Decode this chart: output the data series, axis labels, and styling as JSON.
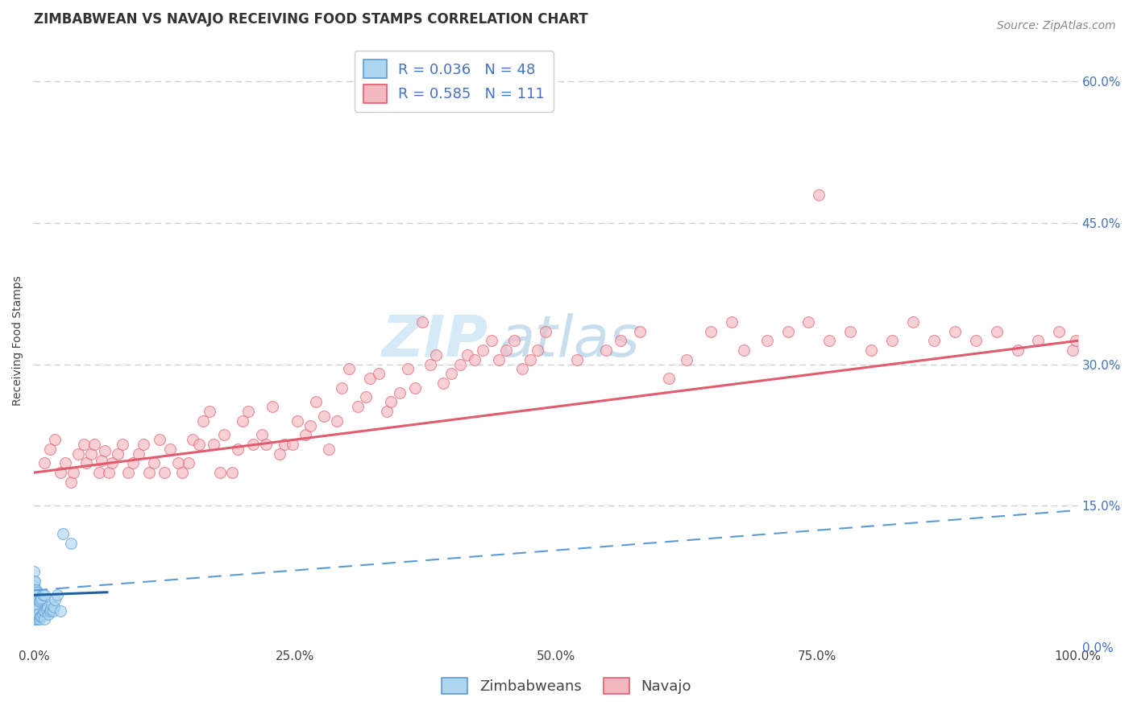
{
  "title": "ZIMBABWEAN VS NAVAJO RECEIVING FOOD STAMPS CORRELATION CHART",
  "source_text": "Source: ZipAtlas.com",
  "ylabel": "Receiving Food Stamps",
  "watermark_zip": "ZIP",
  "watermark_atlas": "atlas",
  "xlim": [
    0,
    1.0
  ],
  "ylim": [
    0,
    0.65
  ],
  "x_ticks": [
    0.0,
    0.25,
    0.5,
    0.75,
    1.0
  ],
  "x_tick_labels": [
    "0.0%",
    "25.0%",
    "50.0%",
    "75.0%",
    "100.0%"
  ],
  "y_ticks": [
    0.0,
    0.15,
    0.3,
    0.45,
    0.6
  ],
  "y_tick_labels": [
    "0.0%",
    "15.0%",
    "30.0%",
    "45.0%",
    "60.0%"
  ],
  "background_color": "#ffffff",
  "grid_color": "#cccccc",
  "zimbabwean_x": [
    0.0,
    0.0,
    0.0,
    0.0,
    0.0,
    0.0,
    0.0,
    0.0,
    0.0,
    0.0,
    0.001,
    0.001,
    0.001,
    0.001,
    0.001,
    0.002,
    0.002,
    0.002,
    0.003,
    0.003,
    0.003,
    0.004,
    0.004,
    0.005,
    0.005,
    0.006,
    0.006,
    0.007,
    0.007,
    0.008,
    0.008,
    0.009,
    0.01,
    0.01,
    0.011,
    0.012,
    0.013,
    0.014,
    0.015,
    0.016,
    0.017,
    0.018,
    0.019,
    0.02,
    0.022,
    0.025,
    0.028,
    0.035
  ],
  "zimbabwean_y": [
    0.03,
    0.04,
    0.05,
    0.06,
    0.07,
    0.08,
    0.035,
    0.045,
    0.055,
    0.065,
    0.03,
    0.04,
    0.05,
    0.06,
    0.07,
    0.03,
    0.045,
    0.06,
    0.03,
    0.042,
    0.058,
    0.035,
    0.05,
    0.03,
    0.048,
    0.032,
    0.05,
    0.033,
    0.052,
    0.035,
    0.055,
    0.038,
    0.03,
    0.055,
    0.038,
    0.04,
    0.042,
    0.035,
    0.038,
    0.04,
    0.045,
    0.038,
    0.042,
    0.05,
    0.055,
    0.038,
    0.12,
    0.11
  ],
  "zimbabwean_facecolor": "#aed6f1",
  "zimbabwean_edgecolor": "#5b9bd5",
  "navajo_x": [
    0.01,
    0.015,
    0.02,
    0.025,
    0.03,
    0.035,
    0.038,
    0.042,
    0.048,
    0.05,
    0.055,
    0.058,
    0.062,
    0.065,
    0.068,
    0.072,
    0.075,
    0.08,
    0.085,
    0.09,
    0.095,
    0.1,
    0.105,
    0.11,
    0.115,
    0.12,
    0.125,
    0.13,
    0.138,
    0.142,
    0.148,
    0.152,
    0.158,
    0.162,
    0.168,
    0.172,
    0.178,
    0.182,
    0.19,
    0.195,
    0.2,
    0.205,
    0.21,
    0.218,
    0.222,
    0.228,
    0.235,
    0.24,
    0.248,
    0.252,
    0.26,
    0.265,
    0.27,
    0.278,
    0.282,
    0.29,
    0.295,
    0.302,
    0.31,
    0.318,
    0.322,
    0.33,
    0.338,
    0.342,
    0.35,
    0.358,
    0.365,
    0.372,
    0.38,
    0.385,
    0.392,
    0.4,
    0.408,
    0.415,
    0.422,
    0.43,
    0.438,
    0.445,
    0.452,
    0.46,
    0.468,
    0.475,
    0.482,
    0.49,
    0.52,
    0.548,
    0.562,
    0.58,
    0.608,
    0.625,
    0.648,
    0.668,
    0.68,
    0.702,
    0.722,
    0.742,
    0.762,
    0.782,
    0.802,
    0.822,
    0.842,
    0.862,
    0.882,
    0.902,
    0.922,
    0.942,
    0.962,
    0.982,
    0.995,
    0.998,
    0.752
  ],
  "navajo_y": [
    0.195,
    0.21,
    0.22,
    0.185,
    0.195,
    0.175,
    0.185,
    0.205,
    0.215,
    0.195,
    0.205,
    0.215,
    0.185,
    0.198,
    0.208,
    0.185,
    0.195,
    0.205,
    0.215,
    0.185,
    0.195,
    0.205,
    0.215,
    0.185,
    0.195,
    0.22,
    0.185,
    0.21,
    0.195,
    0.185,
    0.195,
    0.22,
    0.215,
    0.24,
    0.25,
    0.215,
    0.185,
    0.225,
    0.185,
    0.21,
    0.24,
    0.25,
    0.215,
    0.225,
    0.215,
    0.255,
    0.205,
    0.215,
    0.215,
    0.24,
    0.225,
    0.235,
    0.26,
    0.245,
    0.21,
    0.24,
    0.275,
    0.295,
    0.255,
    0.265,
    0.285,
    0.29,
    0.25,
    0.26,
    0.27,
    0.295,
    0.275,
    0.345,
    0.3,
    0.31,
    0.28,
    0.29,
    0.3,
    0.31,
    0.305,
    0.315,
    0.325,
    0.305,
    0.315,
    0.325,
    0.295,
    0.305,
    0.315,
    0.335,
    0.305,
    0.315,
    0.325,
    0.335,
    0.285,
    0.305,
    0.335,
    0.345,
    0.315,
    0.325,
    0.335,
    0.345,
    0.325,
    0.335,
    0.315,
    0.325,
    0.345,
    0.325,
    0.335,
    0.325,
    0.335,
    0.315,
    0.325,
    0.335,
    0.315,
    0.325,
    0.48
  ],
  "navajo_facecolor": "#f4b8c1",
  "navajo_edgecolor": "#e05c6e",
  "scatter_size": 100,
  "scatter_alpha": 0.65,
  "navajo_trend_x": [
    0.0,
    1.0
  ],
  "navajo_trend_y": [
    0.185,
    0.325
  ],
  "navajo_trend_color": "#e05c6e",
  "navajo_trend_lw": 2.2,
  "zim_solid_trend_x": [
    0.0,
    0.07
  ],
  "zim_solid_trend_y": [
    0.055,
    0.058
  ],
  "zim_solid_trend_color": "#2060a0",
  "zim_solid_trend_lw": 2.2,
  "zim_dashed_trend_x": [
    0.0,
    1.0
  ],
  "zim_dashed_trend_y": [
    0.06,
    0.145
  ],
  "zim_dashed_trend_color": "#5b9bd5",
  "zim_dashed_trend_lw": 1.5,
  "title_fontsize": 12,
  "axis_label_fontsize": 10,
  "tick_fontsize": 11,
  "source_fontsize": 10,
  "watermark_fontsize_zip": 52,
  "watermark_fontsize_atlas": 52,
  "watermark_color": "#cce4f4",
  "legend1_label1": "R = 0.036   N = 48",
  "legend1_label2": "R = 0.585   N = 111",
  "legend2_label1": "Zimbabweans",
  "legend2_label2": "Navajo"
}
